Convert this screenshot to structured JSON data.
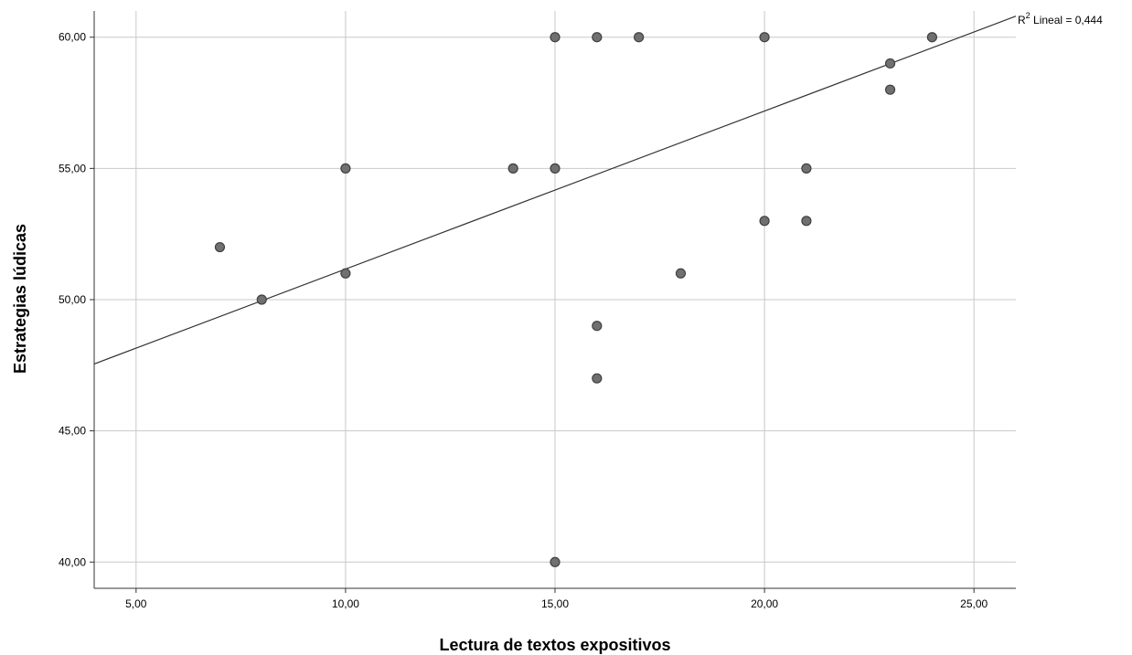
{
  "chart_data": {
    "type": "scatter",
    "xlabel": "Lectura de textos expositivos",
    "ylabel": "Estrategias lúdicas",
    "xlim": [
      4,
      26
    ],
    "ylim": [
      39,
      61
    ],
    "x_ticks": [
      "5,00",
      "10,00",
      "15,00",
      "20,00",
      "25,00"
    ],
    "x_tick_values": [
      5,
      10,
      15,
      20,
      25
    ],
    "y_ticks": [
      "40,00",
      "45,00",
      "50,00",
      "55,00",
      "60,00"
    ],
    "y_tick_values": [
      40,
      45,
      50,
      55,
      60
    ],
    "grid": true,
    "points": [
      {
        "x": 7,
        "y": 52
      },
      {
        "x": 8,
        "y": 50
      },
      {
        "x": 10,
        "y": 55
      },
      {
        "x": 10,
        "y": 51
      },
      {
        "x": 14,
        "y": 55
      },
      {
        "x": 15,
        "y": 60
      },
      {
        "x": 15,
        "y": 55
      },
      {
        "x": 15,
        "y": 40
      },
      {
        "x": 16,
        "y": 60
      },
      {
        "x": 16,
        "y": 49
      },
      {
        "x": 16,
        "y": 47
      },
      {
        "x": 17,
        "y": 60
      },
      {
        "x": 18,
        "y": 51
      },
      {
        "x": 20,
        "y": 60
      },
      {
        "x": 20,
        "y": 53
      },
      {
        "x": 21,
        "y": 55
      },
      {
        "x": 21,
        "y": 53
      },
      {
        "x": 23,
        "y": 59
      },
      {
        "x": 23,
        "y": 58
      },
      {
        "x": 24,
        "y": 60
      }
    ],
    "fit_line": {
      "x_start": 4,
      "y_start": 47.55,
      "x_end": 26,
      "y_end": 60.8
    },
    "annotation": {
      "base": "R",
      "sup": "2",
      "text": " Lineal = 0,444"
    },
    "colors": {
      "point_fill": "#707070",
      "point_stroke": "#404040",
      "grid": "#c8c8c8",
      "axis": "#333333",
      "fit": "#333333"
    }
  }
}
